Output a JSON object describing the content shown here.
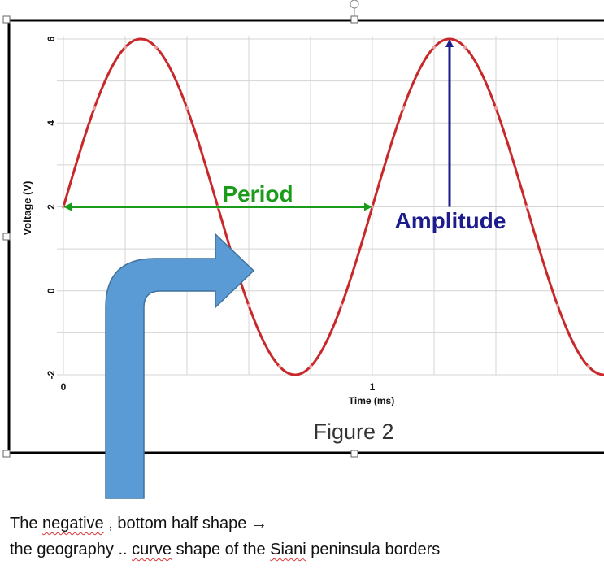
{
  "chart_data": {
    "type": "line",
    "title": "",
    "figure_label": "Figure 2",
    "ylabel": "Voltage (V)",
    "xlabel": "Time (ms)",
    "y_ticks": [
      "6",
      "4",
      "2",
      "0",
      "-2"
    ],
    "y_tick_values": [
      6,
      4,
      2,
      0,
      -2
    ],
    "x_ticks": [
      "0",
      "1"
    ],
    "x_tick_values": [
      0,
      1
    ],
    "ylim": [
      -2,
      6
    ],
    "xlim": [
      0,
      1.75
    ],
    "grid": true,
    "series": [
      {
        "function": "2 + 4*sin(2*pi*x)",
        "offset": 2,
        "amplitude": 4,
        "period_ms": 1,
        "color": "#c8282a"
      }
    ],
    "annotations": [
      {
        "text": "Period",
        "color": "#1a9c1a",
        "from_x": 0,
        "to_x": 1,
        "y": 2
      },
      {
        "text": "Amplitude",
        "color": "#1c1c8c",
        "x": 1.25,
        "from_y": 2,
        "to_y": 6
      }
    ]
  },
  "overlay": {
    "arrow_color": "#5b9bd5",
    "arrow_stroke": "#41719c"
  },
  "caption": {
    "line1_parts": [
      "The ",
      "negative",
      " , bottom half shape →"
    ],
    "line2_parts": [
      "the geography  .. ",
      "curve",
      " shape of the ",
      "Siani",
      " peninsula borders"
    ]
  }
}
